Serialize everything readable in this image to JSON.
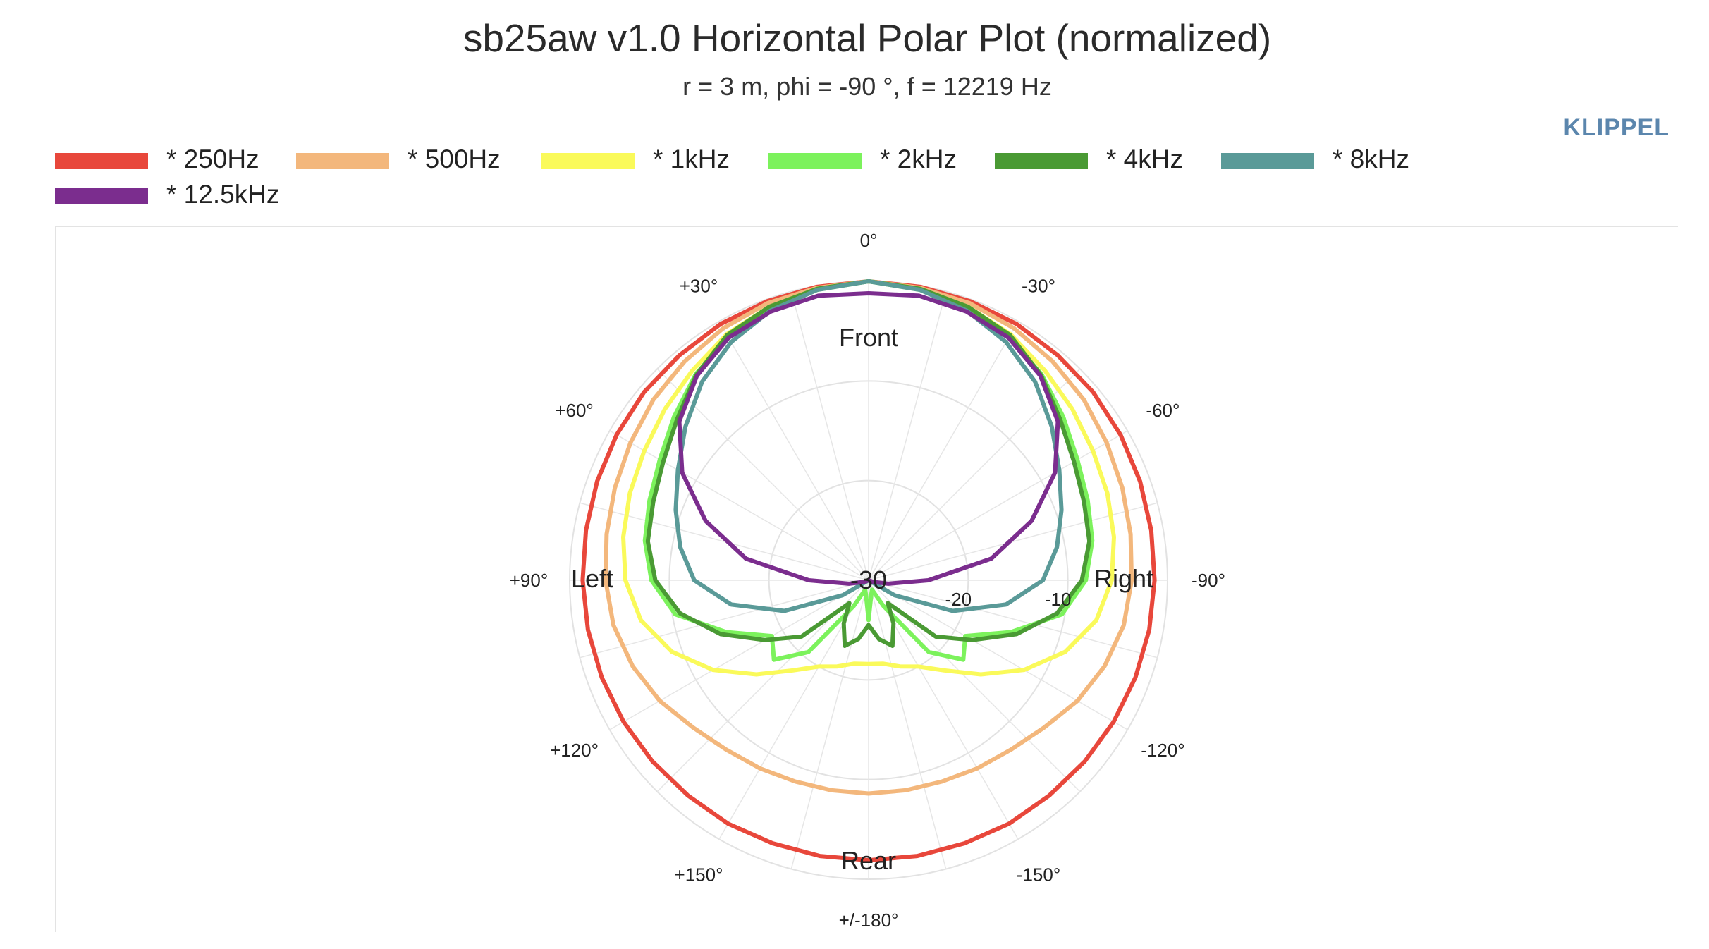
{
  "title": "sb25aw v1.0 Horizontal Polar Plot (normalized)",
  "subtitle": "r = 3 m, phi = -90 °, f = 12219 Hz",
  "brand": "KLIPPEL",
  "chart_data": {
    "type": "polar",
    "title": "sb25aw v1.0 Horizontal Polar Plot (normalized)",
    "subtitle": "r = 3 m, phi = -90 °, f = 12219 Hz",
    "radial_range": [
      -30,
      0
    ],
    "radial_ticks": [
      -30,
      -20,
      -10
    ],
    "radial_tick_labels": [
      "-30",
      "-20",
      "-10"
    ],
    "angular_ticks": [
      0,
      -30,
      -60,
      -90,
      -120,
      -150,
      180,
      150,
      120,
      90,
      60,
      30
    ],
    "angular_tick_labels": [
      "0°",
      "-30°",
      "-60°",
      "-90°",
      "-120°",
      "-150°",
      "+/-180°",
      "+150°",
      "+120°",
      "+90°",
      "+60°",
      "+30°"
    ],
    "direction_labels": {
      "front": "Front",
      "rear": "Rear",
      "left": "Left",
      "right": "Right"
    },
    "angle_convention": "0 at top, negative angles clockwise toward Right, positive toward Left",
    "legend_position": "top",
    "grid": true,
    "angles": [
      0,
      10,
      20,
      30,
      40,
      50,
      60,
      70,
      80,
      90,
      100,
      110,
      120,
      130,
      140,
      150,
      160,
      170,
      180
    ],
    "series": [
      {
        "name": "* 250Hz",
        "color": "#e8473b",
        "values": [
          0,
          -0.1,
          -0.2,
          -0.3,
          -0.5,
          -0.6,
          -0.8,
          -1.0,
          -1.2,
          -1.3,
          -1.4,
          -1.5,
          -1.6,
          -1.7,
          -1.8,
          -1.8,
          -1.9,
          -1.9,
          -1.9
        ]
      },
      {
        "name": "* 500Hz",
        "color": "#f3b77c",
        "values": [
          0,
          -0.2,
          -0.4,
          -0.8,
          -1.3,
          -1.8,
          -2.4,
          -2.9,
          -3.3,
          -3.6,
          -4.0,
          -4.8,
          -5.8,
          -7.0,
          -7.8,
          -8.2,
          -8.5,
          -8.6,
          -8.6
        ]
      },
      {
        "name": "* 1kHz",
        "color": "#fafa5a",
        "values": [
          0,
          -0.3,
          -0.8,
          -1.5,
          -2.5,
          -3.3,
          -4.0,
          -4.5,
          -5.0,
          -5.6,
          -6.8,
          -9.0,
          -12.0,
          -15.3,
          -18.2,
          -20.0,
          -20.8,
          -21.5,
          -21.6
        ]
      },
      {
        "name": "* 2kHz",
        "color": "#7cf25c",
        "values": [
          0,
          -0.4,
          -1.0,
          -1.9,
          -3.0,
          -4.5,
          -5.8,
          -6.6,
          -7.2,
          -8.2,
          -10.3,
          -14.8,
          -18.8,
          -17.6,
          -20.6,
          -27.0,
          -29.0,
          -28.5,
          -26.0
        ]
      },
      {
        "name": "* 4kHz",
        "color": "#4a9a34",
        "values": [
          0,
          -0.3,
          -0.8,
          -1.6,
          -3.1,
          -4.9,
          -6.2,
          -7.0,
          -7.5,
          -8.6,
          -10.8,
          -14.2,
          -18.0,
          -21.2,
          -27.0,
          -25.0,
          -23.0,
          -24.0,
          -25.5
        ]
      },
      {
        "name": "* 8kHz",
        "color": "#5a9a98",
        "values": [
          0,
          -0.4,
          -1.2,
          -2.4,
          -4.0,
          -6.0,
          -7.9,
          -9.4,
          -10.8,
          -12.5,
          -16.0,
          -21.0,
          -27.0,
          -30.0,
          -30.0,
          -30.0,
          -30.0,
          -30.0,
          -30.0
        ]
      },
      {
        "name": "* 12.5kHz",
        "color": "#7b2d8e",
        "values": [
          -1.2,
          -1.0,
          -1.3,
          -1.9,
          -3.2,
          -5.2,
          -8.4,
          -12.6,
          -17.5,
          -24.0,
          -28.0,
          -29.5,
          -30.0,
          -30.0,
          -30.0,
          -30.0,
          -30.0,
          -30.0,
          -30.0
        ]
      }
    ]
  }
}
